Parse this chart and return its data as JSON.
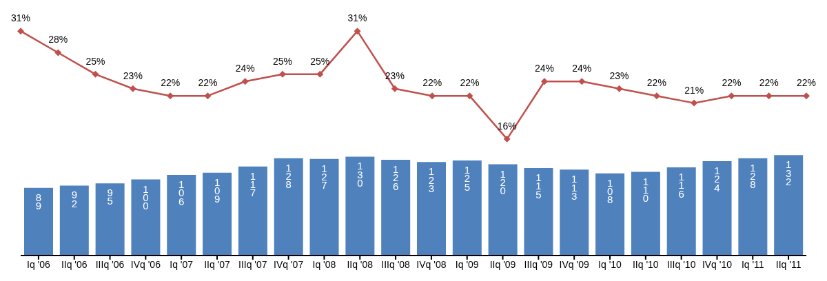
{
  "chart_data": [
    {
      "type": "line",
      "categories": [
        null,
        null,
        null,
        null,
        null,
        null,
        null,
        null,
        null,
        null,
        null,
        null,
        null,
        null,
        null,
        null,
        null,
        null,
        null,
        null,
        null,
        null
      ],
      "series": [
        {
          "color": "#c0504d",
          "values": [
            31,
            28,
            25,
            23,
            22,
            22,
            24,
            25,
            25,
            31,
            23,
            22,
            22,
            16,
            24,
            24,
            23,
            22,
            21,
            22,
            22,
            22
          ],
          "value_labels": [
            "31%",
            "28%",
            "25%",
            "23%",
            "22%",
            "22%",
            "24%",
            "25%",
            "25%",
            "31%",
            "23%",
            "22%",
            "22%",
            "16%",
            "24%",
            "24%",
            "23%",
            "22%",
            "21%",
            "22%",
            "22%",
            "22%"
          ]
        }
      ],
      "marker": "diamond",
      "tick_labels": false
    },
    {
      "type": "bar",
      "categories": [
        "Iq '06",
        "IIq '06",
        "IIIq '06",
        "IVq '06",
        "Iq '07",
        "IIq '07",
        "IIIq '07",
        "IVq '07",
        "Iq '08",
        "IIq '08",
        "IIIq '08",
        "IVq '08",
        "Iq '09",
        "IIq '09",
        "IIIq '09",
        "IVq '09",
        "Iq '10",
        "IIq '10",
        "IIIq '10",
        "IVq '10",
        "Iq '11",
        "IIq '11"
      ],
      "series": [
        {
          "color": "#4f81bd",
          "values": [
            89,
            92,
            95,
            100,
            106,
            109,
            117,
            128,
            127,
            130,
            126,
            123,
            125,
            120,
            115,
            113,
            108,
            110,
            116,
            124,
            128,
            132
          ],
          "value_labels": [
            "89",
            "92",
            "95",
            "100",
            "106",
            "109",
            "117",
            "128",
            "127",
            "130",
            "126",
            "123",
            "125",
            "120",
            "115",
            "113",
            "108",
            "110",
            "116",
            "124",
            "128",
            "132"
          ]
        }
      ],
      "tick_labels": "x"
    }
  ]
}
